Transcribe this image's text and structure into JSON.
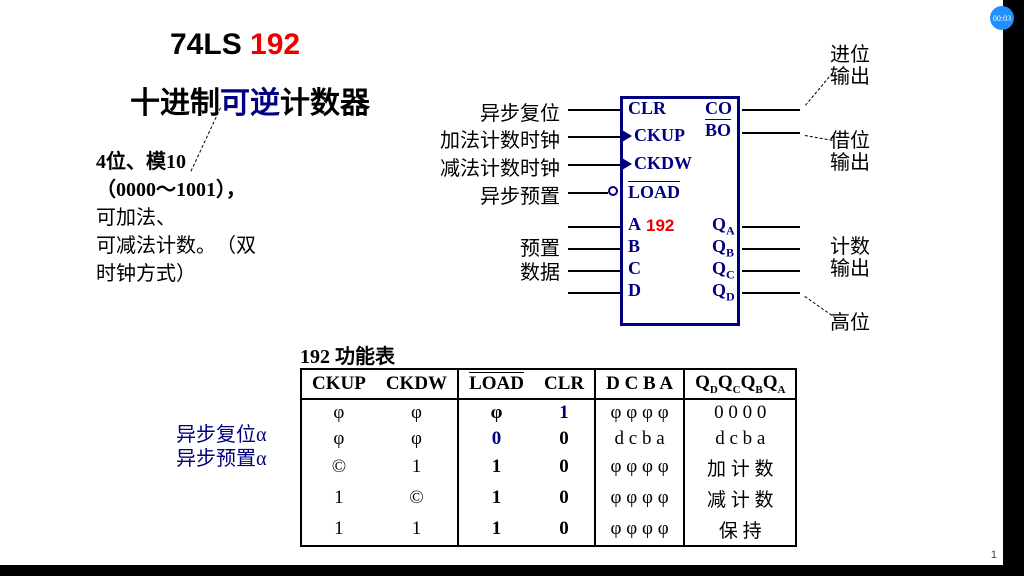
{
  "badge": "00:03",
  "title_prefix": "74LS ",
  "title_num": "192",
  "subtitle_a": "十进制",
  "subtitle_b": "可逆",
  "subtitle_c": "计数器",
  "desc": {
    "l1": "4位、模10",
    "l2": "（0000～1001），",
    "l3": "可加法、",
    "l4a": "可减法计数。",
    "l4b": "（双",
    "l5": "时钟方式）"
  },
  "left_labels": {
    "clr": "异步复位",
    "ckup": "加法计数时钟",
    "ckdw": "减法计数时钟",
    "load": "异步预置",
    "preset": "预置",
    "data": "数据"
  },
  "right_labels": {
    "carry1": "进位",
    "carry2": "输出",
    "borrow1": "借位",
    "borrow2": "输出",
    "count1": "计数",
    "count2": "输出",
    "msb": "高位"
  },
  "pins": {
    "clr": "CLR",
    "ckup": "CKUP",
    "ckdw": "CKDW",
    "load": "LOAD",
    "a": "A",
    "b": "B",
    "c": "C",
    "d": "D",
    "co": "CO",
    "bo": "BO",
    "qa": "Q",
    "qb": "Q",
    "qc": "Q",
    "qd": "Q",
    "qas": "A",
    "qbs": "B",
    "qcs": "C",
    "qds": "D",
    "num": "192"
  },
  "table_title": "192 功能表",
  "side": {
    "a": "异步复位α",
    "b": "异步预置α"
  },
  "th": {
    "c1": "CKUP",
    "c2": "CKDW",
    "c3": "LOAD",
    "c4": "CLR",
    "c5": "D C B A",
    "c6a": "Q",
    "c6as": "D",
    "c6b": "Q",
    "c6bs": "C",
    "c6c": "Q",
    "c6cs": "B",
    "c6d": "Q",
    "c6ds": "A"
  },
  "rows": [
    {
      "ckup": "φ",
      "ckdw": "φ",
      "load": "φ",
      "load_c": "#000",
      "clr": "1",
      "clr_c": "#000080",
      "dcba": "φ φ φ φ",
      "q": "0  0  0  0"
    },
    {
      "ckup": "φ",
      "ckdw": "φ",
      "load": "0",
      "load_c": "#000080",
      "clr": "0",
      "clr_c": "#000",
      "dcba": "d c b a",
      "q": "d  c  b  a"
    },
    {
      "ckup": "©",
      "ckdw": "1",
      "load": "1",
      "load_c": "#000",
      "clr": "0",
      "clr_c": "#000",
      "dcba": "φ φ φ φ",
      "q": "加 计 数"
    },
    {
      "ckup": "1",
      "ckdw": "©",
      "load": "1",
      "load_c": "#000",
      "clr": "0",
      "clr_c": "#000",
      "dcba": "φ φ φ φ",
      "q": "减 计 数"
    },
    {
      "ckup": "1",
      "ckdw": "1",
      "load": "1",
      "load_c": "#000",
      "clr": "0",
      "clr_c": "#000",
      "dcba": "φ φ φ φ",
      "q": "保 持"
    }
  ],
  "page": "1",
  "colors": {
    "navy": "#000080",
    "red": "#e00000"
  }
}
